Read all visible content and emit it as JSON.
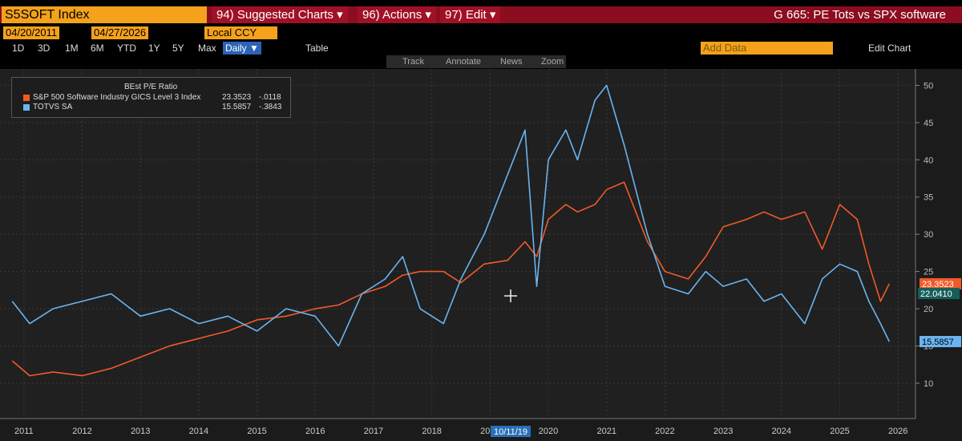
{
  "ui": {
    "security": "S5SOFT Index",
    "menus": [
      "94) Suggested Charts ▾",
      "96) Actions ▾",
      "97) Edit ▾"
    ],
    "chart_name": "G 665: PE Tots vs SPX software",
    "start_date": "04/20/2011",
    "end_date": "04/27/2026",
    "currency": "Local CCY",
    "periods": [
      "1D",
      "3D",
      "1M",
      "6M",
      "YTD",
      "1Y",
      "5Y",
      "Max"
    ],
    "frequency": "Daily ▼",
    "table": "Table",
    "add_data": "Add Data",
    "edit_chart": "Edit Chart",
    "tools": [
      "Track",
      "Annotate",
      "News",
      "Zoom"
    ]
  },
  "chart_data": {
    "type": "line",
    "legend_title": "BEst P/E Ratio",
    "x": [
      2011.3,
      2011.6,
      2012.0,
      2012.5,
      2013.0,
      2013.5,
      2014.0,
      2014.5,
      2015.0,
      2015.5,
      2016.0,
      2016.5,
      2016.9,
      2017.3,
      2017.7,
      2018.0,
      2018.3,
      2018.7,
      2019.0,
      2019.4,
      2019.8,
      2020.1,
      2020.3,
      2020.5,
      2020.8,
      2021.0,
      2021.3,
      2021.5,
      2021.8,
      2022.0,
      2022.2,
      2022.5,
      2022.9,
      2023.2,
      2023.5,
      2023.9,
      2024.2,
      2024.5,
      2024.9,
      2025.2,
      2025.5,
      2025.8,
      2026.0,
      2026.2,
      2026.35
    ],
    "series": [
      {
        "name": "S&P 500 Software Industry GICS Level 3 Index",
        "color": "#f05a28",
        "last_label": "23.3523",
        "change_label": "-.0118",
        "values": [
          13,
          11,
          11.5,
          11,
          12,
          13.5,
          15,
          16,
          17,
          18.5,
          19,
          20,
          20.5,
          22,
          23,
          24.5,
          25,
          25,
          23.5,
          26,
          26.5,
          29,
          27,
          32,
          34,
          33,
          34,
          36,
          37,
          33,
          29,
          25,
          24,
          27,
          31,
          32,
          33,
          32,
          33,
          28,
          34,
          32,
          26,
          21,
          23.35
        ]
      },
      {
        "name": "TOTVS SA",
        "color": "#6ab4f0",
        "last_label": "15.5857",
        "change_label": "-.3843",
        "values": [
          21,
          18,
          20,
          21,
          22,
          19,
          20,
          18,
          19,
          17,
          20,
          19,
          15,
          22,
          24,
          27,
          20,
          18,
          24,
          30,
          38,
          44,
          23,
          40,
          44,
          40,
          48,
          50,
          42,
          36,
          30,
          23,
          22,
          25,
          23,
          24,
          21,
          22,
          18,
          24,
          26,
          25,
          21,
          18,
          15.59
        ]
      }
    ],
    "crosshair_label": {
      "value": 22.041,
      "label": "22.0410"
    },
    "cursor_label": "10/11/19",
    "xlim": [
      2011.09,
      2026.8
    ],
    "xticks": [
      {
        "value": 2011.5,
        "label": "2011"
      },
      {
        "value": 2012.5,
        "label": "2012"
      },
      {
        "value": 2013.5,
        "label": "2013"
      },
      {
        "value": 2014.5,
        "label": "2014"
      },
      {
        "value": 2015.5,
        "label": "2015"
      },
      {
        "value": 2016.5,
        "label": "2016"
      },
      {
        "value": 2017.5,
        "label": "2017"
      },
      {
        "value": 2018.5,
        "label": "2018"
      },
      {
        "value": 2019.5,
        "label": "2019"
      },
      {
        "value": 2020.5,
        "label": "2020"
      },
      {
        "value": 2021.5,
        "label": "2021"
      },
      {
        "value": 2022.5,
        "label": "2022"
      },
      {
        "value": 2023.5,
        "label": "2023"
      },
      {
        "value": 2024.5,
        "label": "2024"
      },
      {
        "value": 2025.5,
        "label": "2025"
      },
      {
        "value": 2026.5,
        "label": "2026"
      }
    ],
    "ylim": [
      5.25,
      52.2
    ],
    "yticks": [
      10,
      15,
      20,
      25,
      30,
      35,
      40,
      45,
      50
    ],
    "grid": true
  }
}
